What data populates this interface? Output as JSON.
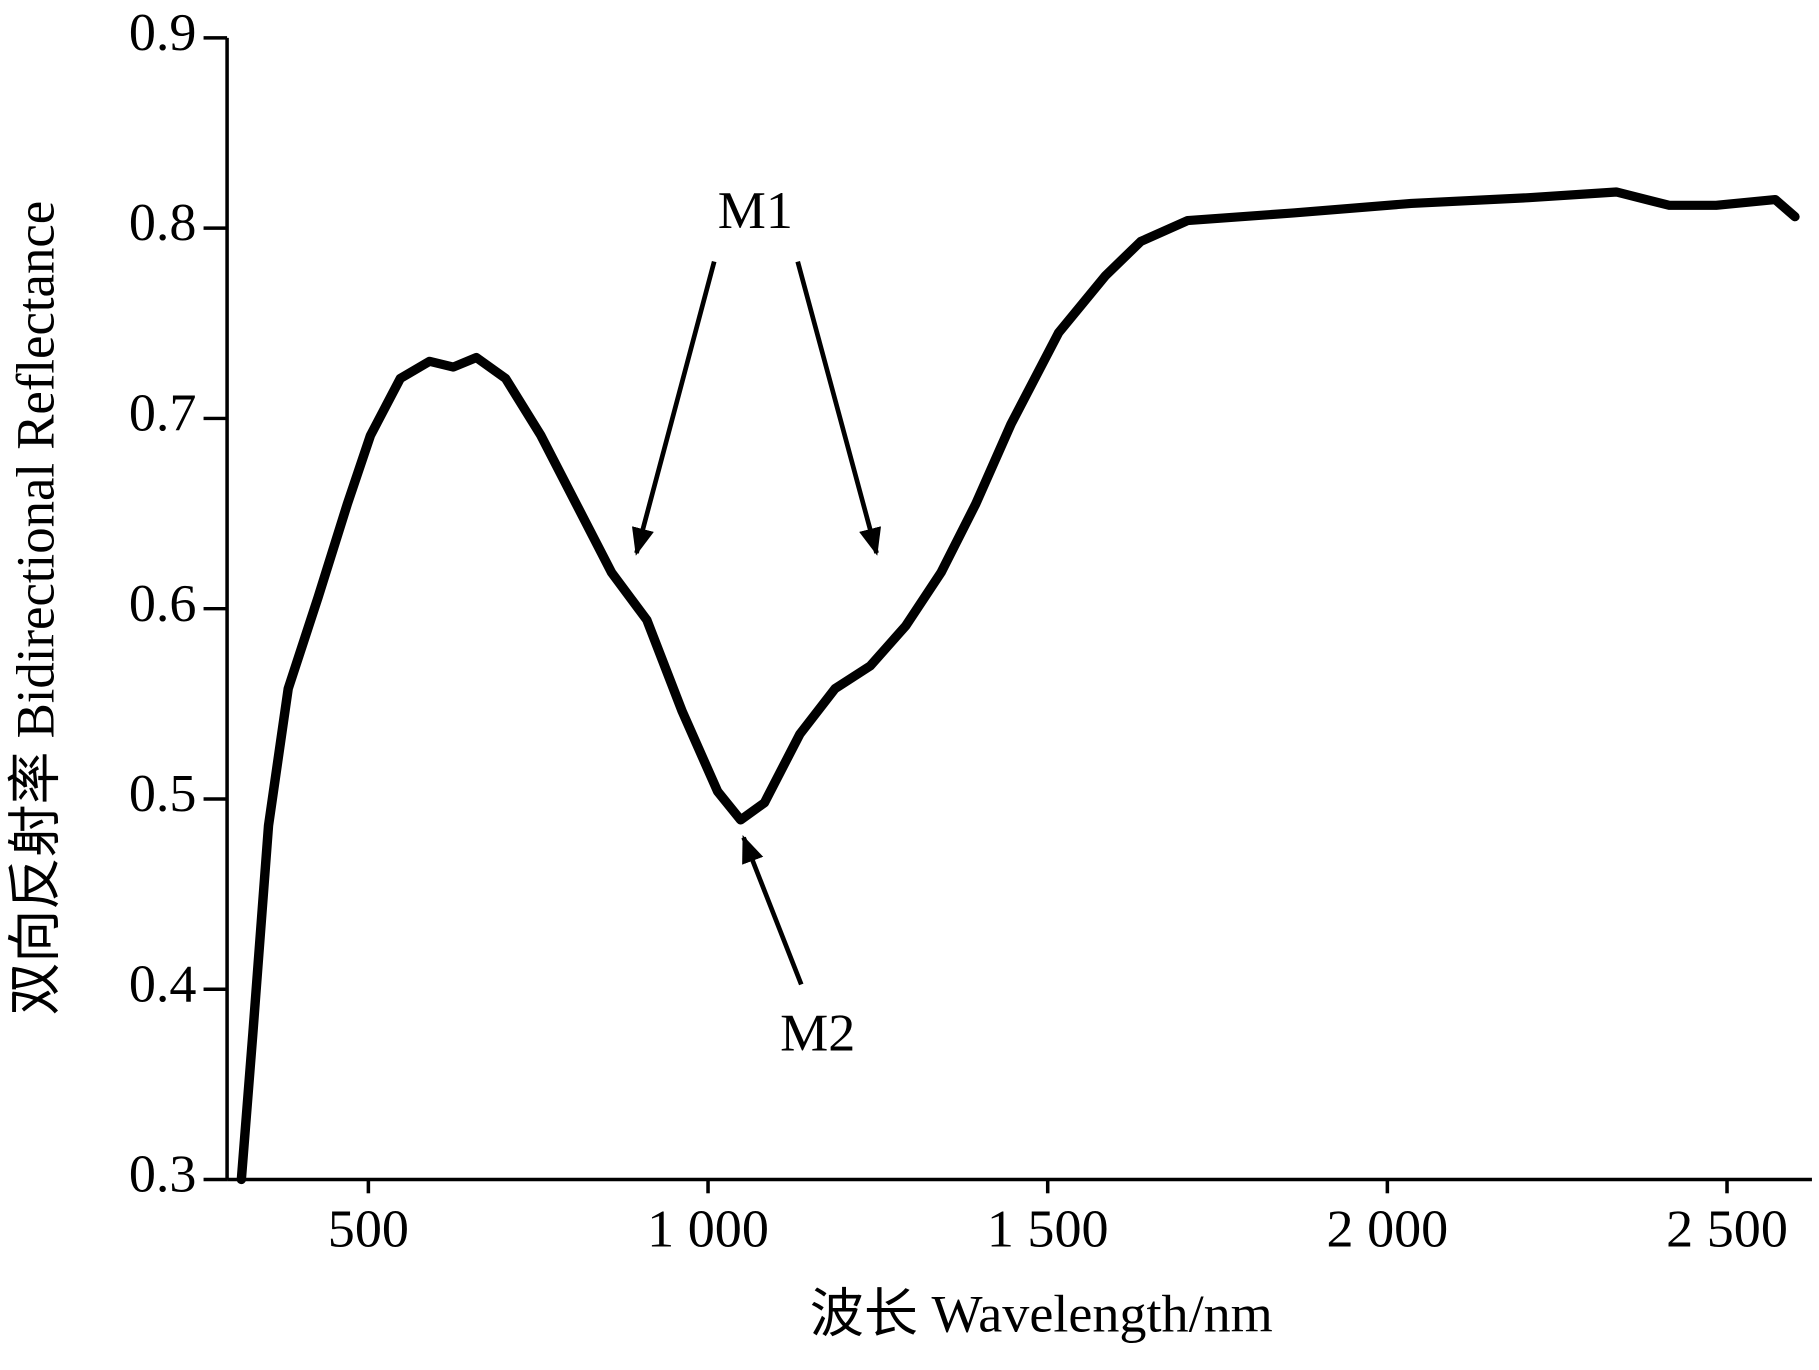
{
  "chart_data": {
    "type": "line",
    "x_label": "波长 Wavelength/nm",
    "y_label": "双向反射率 Bidirectional Reflectance",
    "annotations": [
      "M1",
      "M2"
    ],
    "x": [
      313,
      330,
      353,
      382,
      426,
      469,
      503,
      547,
      590,
      625,
      659,
      702,
      754,
      806,
      858,
      910,
      962,
      1014,
      1048,
      1083,
      1135,
      1187,
      1239,
      1291,
      1343,
      1394,
      1446,
      1516,
      1585,
      1637,
      1706,
      1862,
      2035,
      2208,
      2337,
      2415,
      2484,
      2571,
      2600
    ],
    "series": [
      {
        "name": "Bidirectional Reflectance",
        "color": "#000000",
        "values": [
          0.3,
          0.377,
          0.486,
          0.558,
          0.606,
          0.655,
          0.691,
          0.721,
          0.73,
          0.727,
          0.732,
          0.721,
          0.691,
          0.655,
          0.619,
          0.594,
          0.546,
          0.504,
          0.489,
          0.498,
          0.534,
          0.558,
          0.57,
          0.591,
          0.619,
          0.655,
          0.697,
          0.745,
          0.775,
          0.793,
          0.804,
          0.808,
          0.813,
          0.816,
          0.819,
          0.812,
          0.812,
          0.815,
          0.806
        ]
      }
    ],
    "xlim": [
      292,
      2625
    ],
    "ylim": [
      0.3,
      0.9
    ],
    "xticks": [
      500,
      {
        "value": 1000,
        "label": "1 000"
      },
      {
        "value": 1500,
        "label": "1 500"
      },
      {
        "value": 2000,
        "label": "2 000"
      },
      {
        "value": 2500,
        "label": "2 500"
      }
    ],
    "yticks": [
      0.3,
      0.4,
      0.5,
      0.6,
      0.7,
      0.8,
      0.9
    ],
    "grid": false
  }
}
